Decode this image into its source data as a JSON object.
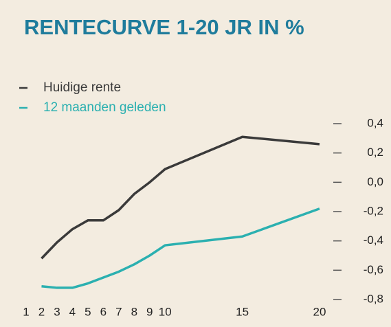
{
  "chart_data": {
    "type": "line",
    "title": "RENTECURVE 1-20 JR IN %",
    "x": [
      2,
      3,
      4,
      5,
      6,
      7,
      8,
      9,
      10,
      15,
      20
    ],
    "xlim": [
      1,
      20
    ],
    "xticks": [
      1,
      2,
      3,
      4,
      5,
      6,
      7,
      8,
      9,
      10,
      15,
      20
    ],
    "ylim": [
      -0.8,
      0.4
    ],
    "yticks": [
      {
        "value": 0.4,
        "label": "0,4"
      },
      {
        "value": 0.2,
        "label": "0,2"
      },
      {
        "value": 0,
        "label": "0,0"
      },
      {
        "value": -0.2,
        "label": "-0,2"
      },
      {
        "value": -0.4,
        "label": "-0,4"
      },
      {
        "value": -0.6,
        "label": "-0,6"
      },
      {
        "value": -0.8,
        "label": "-0,8"
      }
    ],
    "legend": "upper left",
    "series": [
      {
        "name": "Huidige rente",
        "color": "#3a3a3a",
        "values": [
          -0.52,
          -0.41,
          -0.32,
          -0.26,
          -0.26,
          -0.19,
          -0.08,
          0.0,
          0.09,
          0.31,
          0.26
        ]
      },
      {
        "name": "12 maanden geleden",
        "color": "#2bb0b0",
        "values": [
          -0.71,
          -0.72,
          -0.72,
          -0.69,
          -0.65,
          -0.61,
          -0.56,
          -0.5,
          -0.43,
          -0.37,
          -0.18
        ]
      }
    ]
  }
}
